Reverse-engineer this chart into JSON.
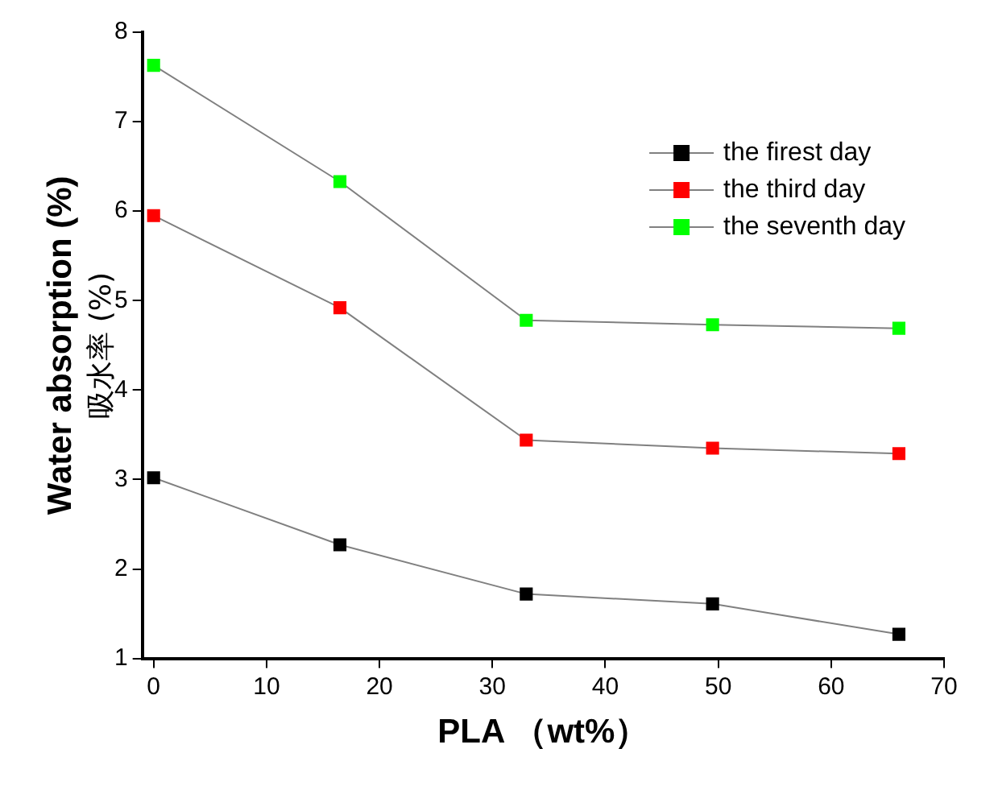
{
  "chart_data": {
    "type": "line",
    "xlabel": "PLA （wt%）",
    "ylabel": "Water absorption (%)\n吸水率 (%)",
    "x": [
      0,
      16.5,
      33,
      49.5,
      66
    ],
    "series": [
      {
        "name": "the firest day",
        "color": "#000000",
        "values": [
          3.02,
          2.27,
          1.72,
          1.61,
          1.27
        ]
      },
      {
        "name": "the third day",
        "color": "#ff0000",
        "values": [
          5.95,
          4.92,
          3.44,
          3.35,
          3.29
        ]
      },
      {
        "name": "the seventh day",
        "color": "#00ff00",
        "values": [
          7.63,
          6.33,
          4.78,
          4.73,
          4.69
        ]
      }
    ],
    "xlim": [
      -1,
      70
    ],
    "xticks": [
      0,
      10,
      20,
      30,
      40,
      50,
      60,
      70
    ],
    "ylim": [
      1,
      8
    ],
    "yticks": [
      1,
      2,
      3,
      4,
      5,
      6,
      7,
      8
    ],
    "grid": false,
    "legend": "top right",
    "marker": "square",
    "line_style": "solid"
  }
}
